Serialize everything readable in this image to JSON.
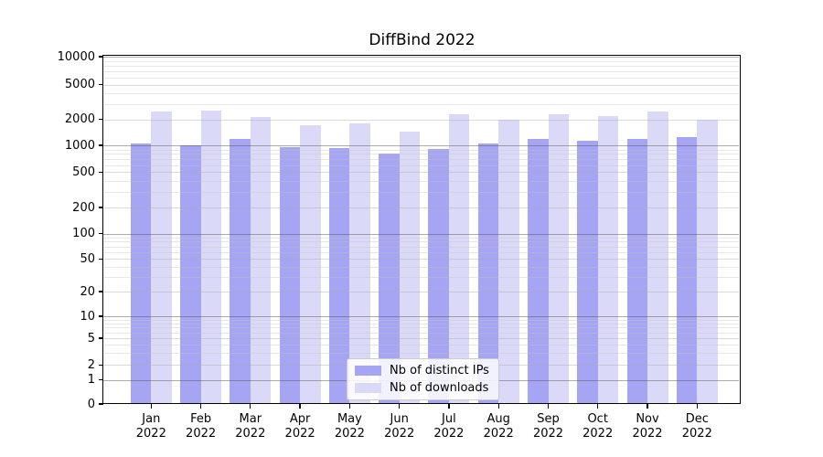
{
  "chart_data": {
    "type": "bar",
    "title": "DiffBind 2022",
    "months": [
      "Jan",
      "Feb",
      "Mar",
      "Apr",
      "May",
      "Jun",
      "Jul",
      "Aug",
      "Sep",
      "Oct",
      "Nov",
      "Dec"
    ],
    "year": "2022",
    "yscale": "symlog",
    "ylim": [
      0,
      10000
    ],
    "yticks": [
      0,
      1,
      2,
      5,
      10,
      20,
      50,
      100,
      200,
      500,
      1000,
      2000,
      5000,
      10000
    ],
    "grid": true,
    "legend_position": "lower center",
    "series": [
      {
        "name": "Nb of distinct IPs",
        "color": "#a5a5f3",
        "values": [
          1060,
          1010,
          1180,
          960,
          940,
          800,
          915,
          1060,
          1190,
          1140,
          1190,
          1250
        ]
      },
      {
        "name": "Nb of downloads",
        "color": "#dadaf8",
        "values": [
          2440,
          2530,
          2120,
          1700,
          1790,
          1430,
          2300,
          1990,
          2270,
          2190,
          2470,
          2000
        ]
      }
    ]
  }
}
